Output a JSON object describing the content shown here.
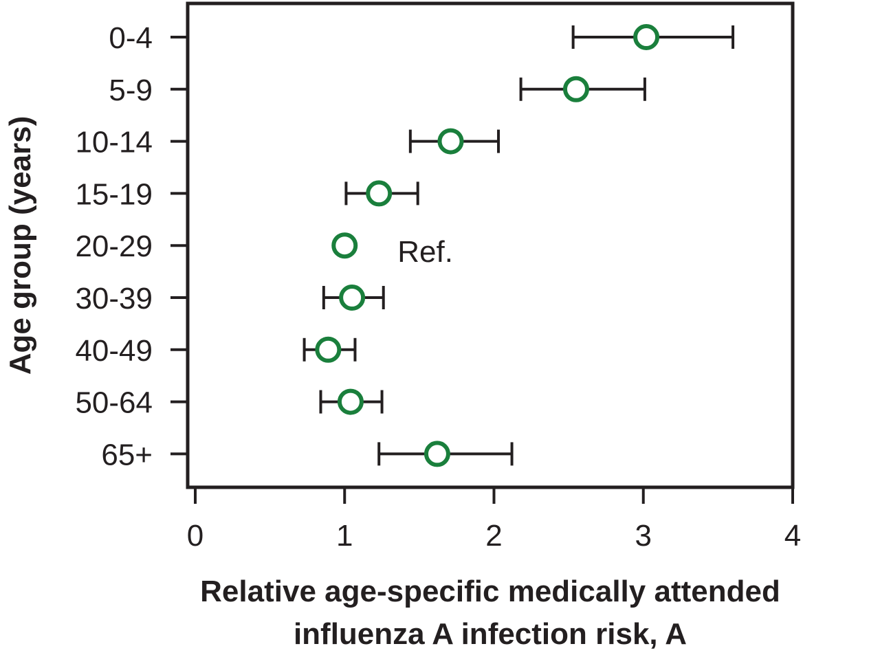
{
  "chart_data": {
    "type": "scatter",
    "xlabel_lines": [
      "Relative age-specific medically attended",
      "influenza A infection risk, A"
    ],
    "ylabel": "Age group (years)",
    "xlim": [
      0,
      4
    ],
    "xticks": [
      "0",
      "1",
      "2",
      "3",
      "4"
    ],
    "categories": [
      "0-4",
      "5-9",
      "10-14",
      "15-19",
      "20-29",
      "30-39",
      "40-49",
      "50-64",
      "65+"
    ],
    "values": [
      3.02,
      2.55,
      1.71,
      1.23,
      1.0,
      1.05,
      0.89,
      1.04,
      1.62
    ],
    "ci_low": [
      2.53,
      2.18,
      1.44,
      1.01,
      null,
      0.86,
      0.73,
      0.84,
      1.23
    ],
    "ci_high": [
      3.6,
      3.01,
      2.03,
      1.49,
      null,
      1.26,
      1.07,
      1.25,
      2.12
    ],
    "annotation": {
      "text": "Ref.",
      "category": "20-29"
    },
    "grid": false,
    "marker_color": "#1a7f3c",
    "errorbar_color": "#231f20"
  }
}
